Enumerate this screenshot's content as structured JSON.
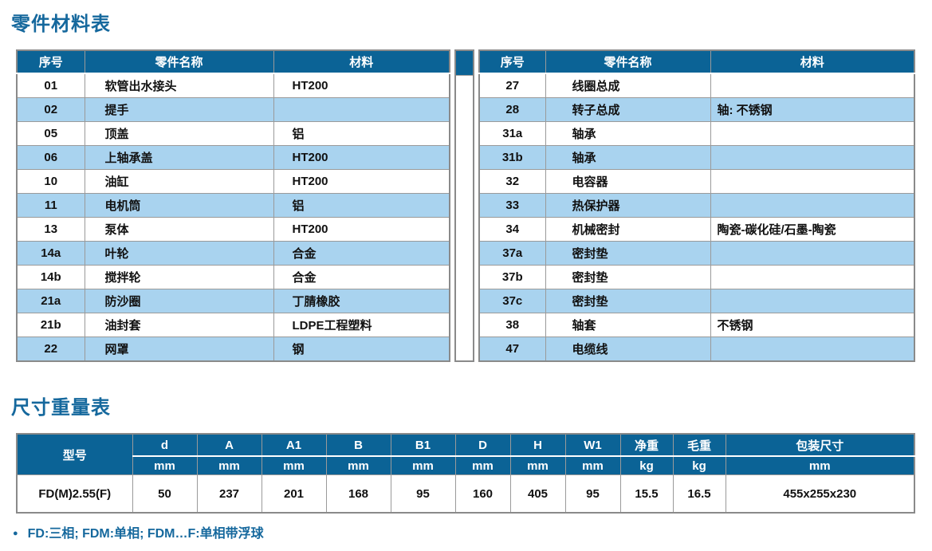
{
  "page": {
    "parts_table_title": "零件材料表",
    "dims_table_title": "尺寸重量表",
    "footnote_bullet": "●",
    "footnote": "FD:三相; FDM:单相; FDM…F:单相带浮球"
  },
  "colors": {
    "header_bg": "#0b6396",
    "row_alt_blue": "#a9d3ef",
    "title_blue": "#15689d",
    "border_gray": "#9a9a9a"
  },
  "parts_table": {
    "headers": [
      "序号",
      "零件名称",
      "材料"
    ],
    "left_rows": [
      {
        "no": "01",
        "name": "软管出水接头",
        "material": "HT200"
      },
      {
        "no": "02",
        "name": "提手",
        "material": ""
      },
      {
        "no": "05",
        "name": "顶盖",
        "material": "铝"
      },
      {
        "no": "06",
        "name": "上轴承盖",
        "material": "HT200"
      },
      {
        "no": "10",
        "name": "油缸",
        "material": "HT200"
      },
      {
        "no": "11",
        "name": "电机筒",
        "material": "铝"
      },
      {
        "no": "13",
        "name": "泵体",
        "material": "HT200"
      },
      {
        "no": "14a",
        "name": "叶轮",
        "material": "合金"
      },
      {
        "no": "14b",
        "name": "搅拌轮",
        "material": "合金"
      },
      {
        "no": "21a",
        "name": "防沙圈",
        "material": "丁腈橡胶"
      },
      {
        "no": "21b",
        "name": "油封套",
        "material": "LDPE工程塑料"
      },
      {
        "no": "22",
        "name": "网罩",
        "material": "钢"
      }
    ],
    "right_rows": [
      {
        "no": "27",
        "name": "线圈总成",
        "material": ""
      },
      {
        "no": "28",
        "name": "转子总成",
        "material": "轴: 不锈钢"
      },
      {
        "no": "31a",
        "name": "轴承",
        "material": ""
      },
      {
        "no": "31b",
        "name": "轴承",
        "material": ""
      },
      {
        "no": "32",
        "name": "电容器",
        "material": ""
      },
      {
        "no": "33",
        "name": "热保护器",
        "material": ""
      },
      {
        "no": "34",
        "name": "机械密封",
        "material": "陶瓷-碳化硅/石墨-陶瓷"
      },
      {
        "no": "37a",
        "name": "密封垫",
        "material": ""
      },
      {
        "no": "37b",
        "name": "密封垫",
        "material": ""
      },
      {
        "no": "37c",
        "name": "密封垫",
        "material": ""
      },
      {
        "no": "38",
        "name": "轴套",
        "material": "不锈钢"
      },
      {
        "no": "47",
        "name": "电缆线",
        "material": ""
      }
    ]
  },
  "dims_table": {
    "model_header": "型号",
    "columns": [
      {
        "label": "d",
        "unit": "mm"
      },
      {
        "label": "A",
        "unit": "mm"
      },
      {
        "label": "A1",
        "unit": "mm"
      },
      {
        "label": "B",
        "unit": "mm"
      },
      {
        "label": "B1",
        "unit": "mm"
      },
      {
        "label": "D",
        "unit": "mm"
      },
      {
        "label": "H",
        "unit": "mm"
      },
      {
        "label": "W1",
        "unit": "mm"
      },
      {
        "label": "净重",
        "unit": "kg"
      },
      {
        "label": "毛重",
        "unit": "kg"
      },
      {
        "label": "包装尺寸",
        "unit": "mm"
      }
    ],
    "rows": [
      {
        "model": "FD(M)2.55(F)",
        "values": [
          "50",
          "237",
          "201",
          "168",
          "95",
          "160",
          "405",
          "95",
          "15.5",
          "16.5",
          "455x255x230"
        ]
      }
    ]
  }
}
